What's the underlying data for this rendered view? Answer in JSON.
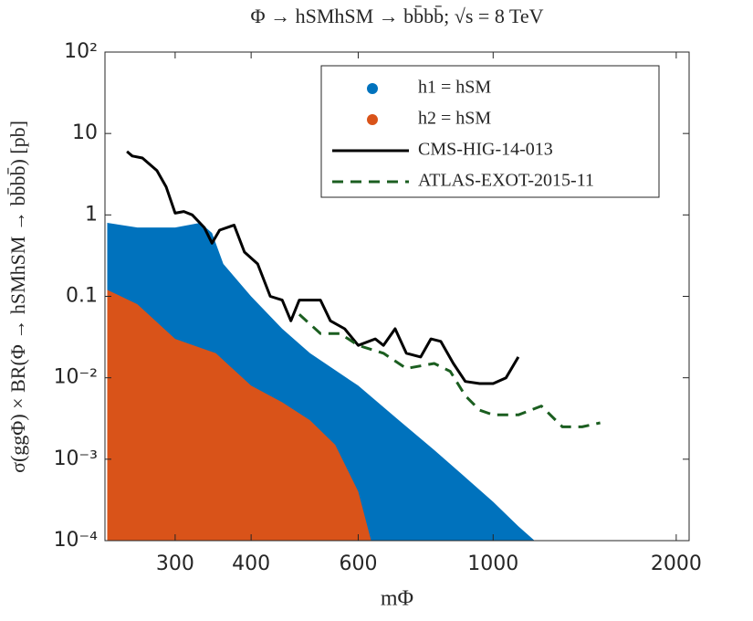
{
  "chart_data": {
    "type": "scatter",
    "title": "Φ → hSMhSM → bb̄bb̄; √s = 8 TeV",
    "x_label": "mΦ",
    "y_label": "σ(ggΦ) × BR(Φ → hSMhSM → bb̄bb̄) [pb]",
    "xscale": "log",
    "yscale": "log",
    "xlim": [
      230,
      2100
    ],
    "ylim": [
      0.0001,
      100
    ],
    "xticks": [
      300,
      400,
      600,
      1000,
      2000
    ],
    "yticks": [
      {
        "value": 100,
        "label": "10²"
      },
      10,
      1,
      0.1,
      {
        "value": 0.01,
        "label": "10⁻²"
      },
      {
        "value": 0.001,
        "label": "10⁻³"
      },
      {
        "value": 0.0001,
        "label": "10⁻⁴"
      }
    ],
    "legend": "top-right",
    "series": [
      {
        "name": "h1 = hSM",
        "type": "scatter",
        "color": "#0072bd",
        "x": [
          232,
          260,
          300,
          330,
          345,
          360,
          400,
          450,
          500,
          600,
          700,
          800,
          900,
          1000,
          1100,
          1170
        ],
        "values": [
          0.8,
          0.7,
          0.7,
          0.8,
          0.6,
          0.25,
          0.1,
          0.04,
          0.02,
          0.008,
          0.003,
          0.0013,
          0.0006,
          0.0003,
          0.00015,
          0.0001
        ]
      },
      {
        "name": "h2 = hSM",
        "type": "scatter",
        "color": "#d95319",
        "x": [
          232,
          260,
          300,
          350,
          400,
          450,
          500,
          550,
          600,
          630
        ],
        "values": [
          0.12,
          0.08,
          0.03,
          0.02,
          0.008,
          0.005,
          0.003,
          0.0015,
          0.0004,
          0.0001
        ]
      },
      {
        "name": "CMS-HIG-14-013",
        "type": "line",
        "color": "#000000",
        "dash": false,
        "x": [
          250,
          255,
          265,
          280,
          290,
          300,
          310,
          320,
          335,
          345,
          355,
          375,
          390,
          410,
          430,
          450,
          465,
          480,
          520,
          540,
          570,
          600,
          640,
          660,
          690,
          720,
          760,
          790,
          820,
          860,
          900,
          950,
          1000,
          1050,
          1100
        ],
        "values": [
          6,
          5.3,
          5,
          3.5,
          2.2,
          1.05,
          1.1,
          1.0,
          0.7,
          0.45,
          0.65,
          0.75,
          0.35,
          0.25,
          0.1,
          0.09,
          0.05,
          0.09,
          0.09,
          0.05,
          0.04,
          0.025,
          0.03,
          0.025,
          0.04,
          0.02,
          0.018,
          0.03,
          0.028,
          0.015,
          0.009,
          0.0085,
          0.0085,
          0.01,
          0.018
        ]
      },
      {
        "name": "ATLAS-EXOT-2015-11",
        "type": "line",
        "color": "#1b5e20",
        "dash": true,
        "x": [
          480,
          520,
          560,
          600,
          660,
          720,
          800,
          850,
          900,
          950,
          1000,
          1100,
          1200,
          1300,
          1400,
          1500
        ],
        "values": [
          0.06,
          0.035,
          0.035,
          0.025,
          0.02,
          0.013,
          0.015,
          0.012,
          0.006,
          0.004,
          0.0035,
          0.0035,
          0.0045,
          0.0025,
          0.0025,
          0.0028
        ]
      }
    ]
  }
}
